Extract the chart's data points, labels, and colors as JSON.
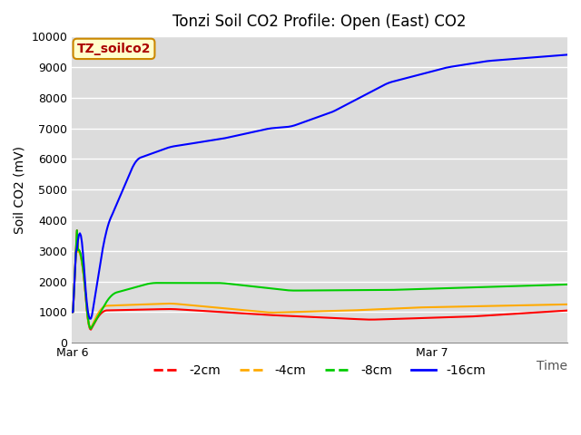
{
  "title": "Tonzi Soil CO2 Profile: Open (East) CO2",
  "ylabel": "Soil CO2 (mV)",
  "xlabel": "Time",
  "annotation": "TZ_soilco2",
  "ylim": [
    0,
    10000
  ],
  "yticks": [
    0,
    1000,
    2000,
    3000,
    4000,
    5000,
    6000,
    7000,
    8000,
    9000,
    10000
  ],
  "background_color": "#dcdcdc",
  "plot_bg_color": "#dcdcdc",
  "grid_color": "#ffffff",
  "legend_labels": [
    "-2cm",
    "-4cm",
    "-8cm",
    "-16cm"
  ],
  "legend_colors": [
    "#ff0000",
    "#ffaa00",
    "#00cc00",
    "#0000ff"
  ],
  "title_fontsize": 12,
  "label_fontsize": 10,
  "tick_fontsize": 9,
  "xlim": [
    0,
    33
  ],
  "xtick_positions": [
    0,
    24
  ],
  "xtick_labels": [
    "Mar 6",
    "Mar 7"
  ]
}
